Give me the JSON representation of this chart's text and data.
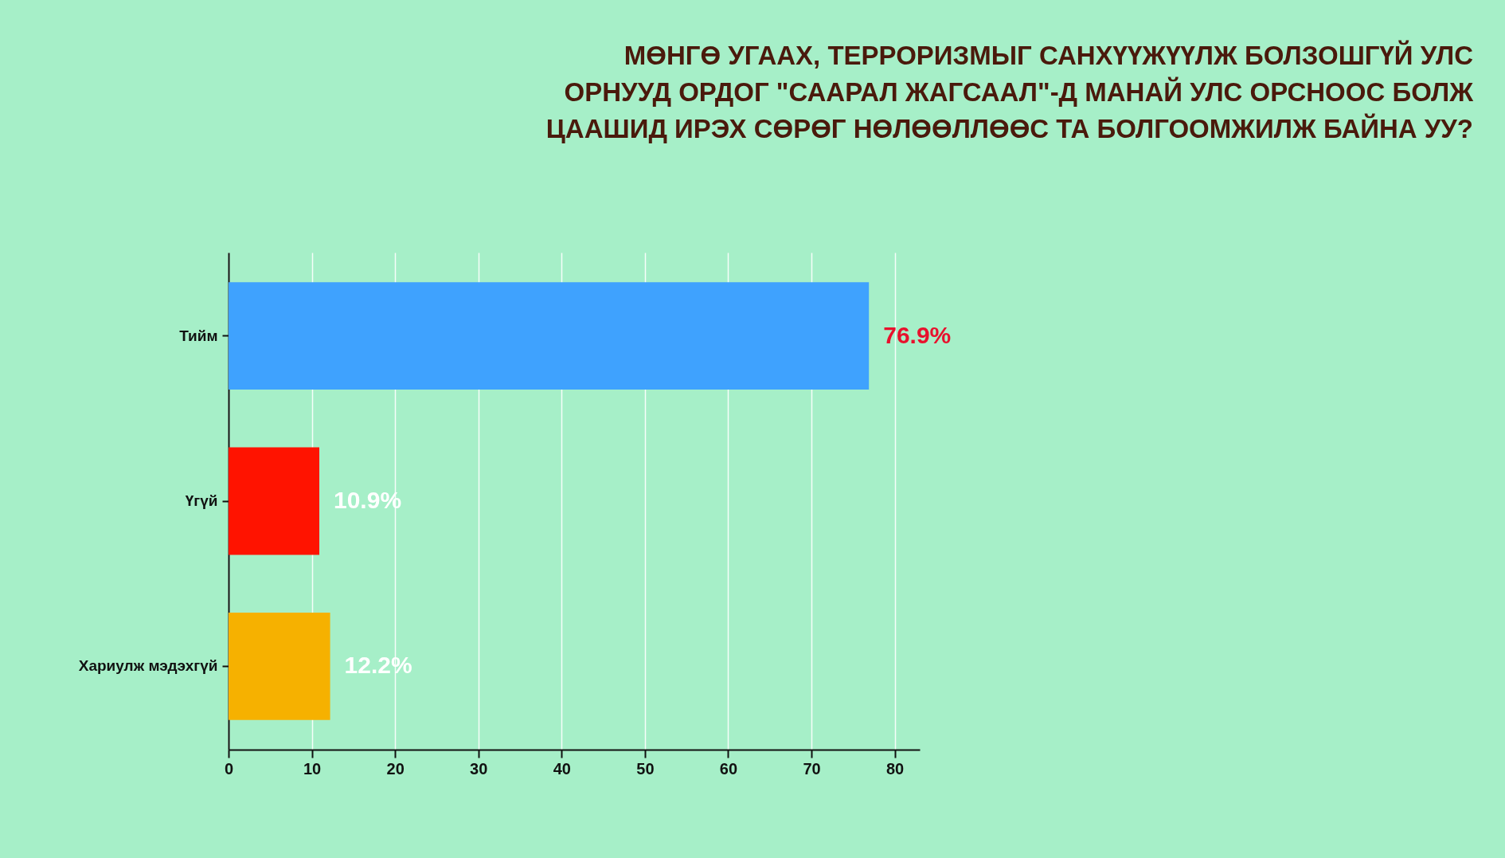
{
  "chart_data": {
    "type": "bar",
    "orientation": "horizontal",
    "title": "МӨНГӨ УГААХ, ТЕРРОРИЗМЫГ САНХҮҮЖҮҮЛЖ БОЛЗОШГҮЙ УЛС\nОРНУУД ОРДОГ \"СААРАЛ ЖАГСААЛ\"-Д МАНАЙ УЛС ОРСНООС БОЛЖ\nЦААШИД ИРЭХ СӨРӨГ НӨЛӨӨЛЛӨӨС ТА БОЛГООМЖИЛЖ БАЙНА УУ?",
    "categories": [
      "Тийм",
      "Үгүй",
      "Хариулж мэдэхгүй"
    ],
    "values": [
      76.9,
      10.9,
      12.2
    ],
    "colors": [
      "#3fa2fe",
      "#ff1300",
      "#f6b100"
    ],
    "value_labels": [
      "76.9%",
      "10.9%",
      "12.2%"
    ],
    "xlim": [
      0,
      83
    ],
    "xticks": [
      0,
      10,
      20,
      30,
      40,
      50,
      60,
      70,
      80
    ],
    "grid": "x"
  }
}
